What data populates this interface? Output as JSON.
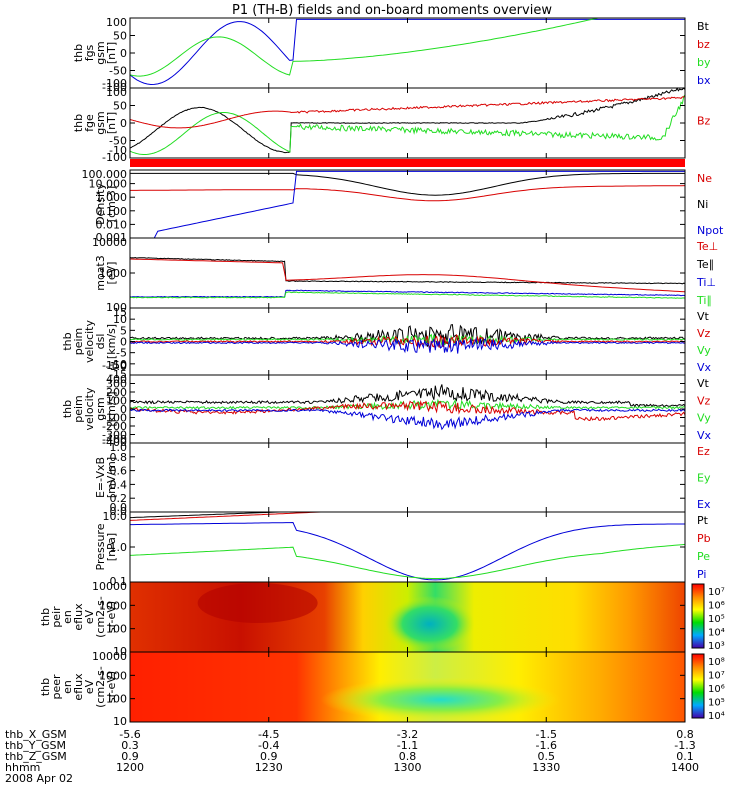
{
  "title": "P1 (TH-B) fields and on-board moments overview",
  "colors": {
    "black": "#000000",
    "red": "#d80000",
    "green": "#22dd22",
    "blue": "#0000d8",
    "strip": "#ff0000"
  },
  "chart_data": {
    "type": "line",
    "x_ticks": [
      "1200",
      "1230",
      "1300",
      "1330",
      "1400"
    ],
    "panels": [
      {
        "key": "fgs",
        "ylabel": [
          "thb",
          "fgs",
          "gsm",
          "[nT]"
        ],
        "yticks": [
          "100",
          "50",
          "0",
          "-50",
          "-100"
        ],
        "legend": [
          {
            "name": "Bt",
            "color": "black"
          },
          {
            "name": "bz",
            "color": "red"
          },
          {
            "name": "by",
            "color": "green"
          },
          {
            "name": "bx",
            "color": "blue"
          }
        ]
      },
      {
        "key": "fge",
        "ylabel": [
          "thb",
          "fge",
          "gsm",
          "[nT]"
        ],
        "yticks": [
          "100",
          "50",
          "0",
          "-50",
          "-100"
        ],
        "legend": [
          {
            "name": "Bz",
            "color": "red"
          }
        ]
      },
      {
        "key": "density",
        "ylabel": [
          "Density",
          "[cm-3]"
        ],
        "yticks": [
          "100.000",
          "10.000",
          "1.000",
          "0.100",
          "0.010",
          "0.001"
        ],
        "legend": [
          {
            "name": "Ne",
            "color": "red"
          },
          {
            "name": "Ni",
            "color": "black"
          },
          {
            "name": "Npot",
            "color": "blue"
          }
        ]
      },
      {
        "key": "temp",
        "ylabel": [
          "moat3",
          "[eV]"
        ],
        "yticks": [
          "10000",
          "1000",
          "100"
        ],
        "legend": [
          {
            "name": "Te⊥",
            "color": "red"
          },
          {
            "name": "Te∥",
            "color": "black"
          },
          {
            "name": "Ti⊥",
            "color": "blue"
          },
          {
            "name": "Ti∥",
            "color": "green"
          }
        ]
      },
      {
        "key": "velDsl",
        "ylabel": [
          "thb",
          "peim",
          "velocity",
          "dsl",
          "[km/s]"
        ],
        "yticks": [
          "15",
          "10",
          "5",
          "0",
          "-5",
          "-10",
          "-15"
        ],
        "legend": [
          {
            "name": "Vt",
            "color": "black"
          },
          {
            "name": "Vz",
            "color": "red"
          },
          {
            "name": "Vy",
            "color": "green"
          },
          {
            "name": "Vx",
            "color": "blue"
          }
        ]
      },
      {
        "key": "velGsm",
        "ylabel": [
          "thb",
          "peim",
          "velocity",
          "gsm",
          "[km/s]"
        ],
        "yticks": [
          "400",
          "300",
          "200",
          "100",
          "0",
          "-100",
          "-200",
          "-300",
          "-400"
        ],
        "legend": [
          {
            "name": "Vt",
            "color": "black"
          },
          {
            "name": "Vz",
            "color": "red"
          },
          {
            "name": "Vy",
            "color": "green"
          },
          {
            "name": "Vx",
            "color": "blue"
          }
        ]
      },
      {
        "key": "efield",
        "ylabel": [
          "E=-VxB",
          "[mV/m]"
        ],
        "yticks": [
          "1.0",
          "0.8",
          "0.6",
          "0.4",
          "0.2",
          "0.0"
        ],
        "legend": [
          {
            "name": "Ez",
            "color": "red"
          },
          {
            "name": "Ey",
            "color": "green"
          },
          {
            "name": "Ex",
            "color": "blue"
          }
        ]
      },
      {
        "key": "pressure",
        "ylabel": [
          "Pressure",
          "[nPa]"
        ],
        "yticks": [
          "10.0",
          "1.0",
          "0.1"
        ],
        "legend": [
          {
            "name": "Pt",
            "color": "black"
          },
          {
            "name": "Pb",
            "color": "red"
          },
          {
            "name": "Pe",
            "color": "green"
          },
          {
            "name": "Pi",
            "color": "blue"
          }
        ]
      },
      {
        "key": "ionSpec",
        "ylabel": [
          "thb",
          "peir",
          "en",
          "eflux",
          "eV",
          "(cm2-s-",
          "sr-eV)"
        ],
        "yticks": [
          "10000",
          "1000",
          "100",
          "10"
        ],
        "colorbar": [
          "10⁷",
          "10⁶",
          "10⁵",
          "10⁴",
          "10³"
        ]
      },
      {
        "key": "eleSpec",
        "ylabel": [
          "thb",
          "peer",
          "en",
          "eflux",
          "eV",
          "(cm2-s-",
          "sr-eV)"
        ],
        "yticks": [
          "10000",
          "1000",
          "100",
          "10"
        ],
        "colorbar": [
          "10⁸",
          "10⁷",
          "10⁶",
          "10⁵",
          "10⁴"
        ]
      }
    ],
    "ephemeris": [
      {
        "label": "thb_X_GSM",
        "values": [
          "-5.6",
          "-4.5",
          "-3.2",
          "-1.5",
          "0.8"
        ]
      },
      {
        "label": "thb_Y_GSM",
        "values": [
          "0.3",
          "-0.4",
          "-1.1",
          "-1.6",
          "-1.3"
        ]
      },
      {
        "label": "thb_Z_GSM",
        "values": [
          "0.9",
          "0.9",
          "0.8",
          "0.5",
          "0.1"
        ]
      },
      {
        "label": "hhmm",
        "values": [
          "1200",
          "1230",
          "1300",
          "1330",
          "1400"
        ]
      }
    ],
    "date": "2008 Apr 02",
    "extra_tick_labels": [
      "-100",
      "-10",
      "-400",
      "-150",
      "0.0",
      "-1.0"
    ]
  }
}
